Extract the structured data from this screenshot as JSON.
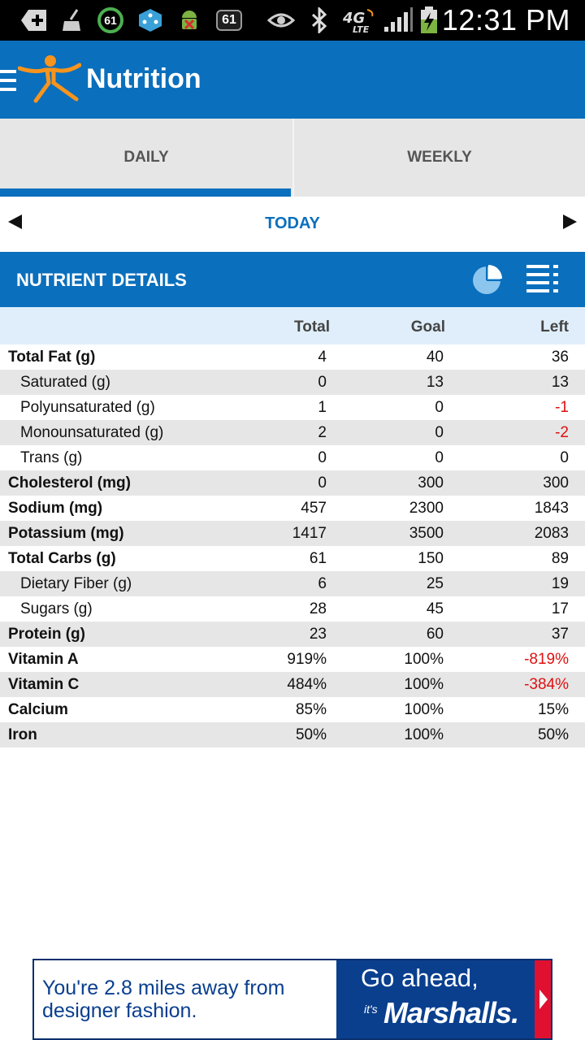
{
  "status_bar": {
    "badge1": "61",
    "badge2": "61",
    "network": "4G LTE",
    "time": "12:31 PM"
  },
  "app_bar": {
    "title": "Nutrition"
  },
  "tabs": [
    {
      "label": "DAILY",
      "active": true
    },
    {
      "label": "WEEKLY",
      "active": false
    }
  ],
  "date_nav": {
    "label": "TODAY"
  },
  "section": {
    "title": "NUTRIENT DETAILS"
  },
  "table": {
    "headers": [
      "Total",
      "Goal",
      "Left"
    ],
    "rows": [
      {
        "name": "Total Fat (g)",
        "total": "4",
        "goal": "40",
        "left": "36"
      },
      {
        "name": "Saturated (g)",
        "total": "0",
        "goal": "13",
        "left": "13"
      },
      {
        "name": "Polyunsaturated (g)",
        "total": "1",
        "goal": "0",
        "left": "-1"
      },
      {
        "name": "Monounsaturated (g)",
        "total": "2",
        "goal": "0",
        "left": "-2"
      },
      {
        "name": "Trans (g)",
        "total": "0",
        "goal": "0",
        "left": "0"
      },
      {
        "name": "Cholesterol (mg)",
        "total": "0",
        "goal": "300",
        "left": "300"
      },
      {
        "name": "Sodium (mg)",
        "total": "457",
        "goal": "2300",
        "left": "1843"
      },
      {
        "name": "Potassium (mg)",
        "total": "1417",
        "goal": "3500",
        "left": "2083"
      },
      {
        "name": "Total Carbs (g)",
        "total": "61",
        "goal": "150",
        "left": "89"
      },
      {
        "name": "Dietary Fiber (g)",
        "total": "6",
        "goal": "25",
        "left": "19"
      },
      {
        "name": "Sugars (g)",
        "total": "28",
        "goal": "45",
        "left": "17"
      },
      {
        "name": "Protein (g)",
        "total": "23",
        "goal": "60",
        "left": "37"
      },
      {
        "name": "Vitamin A",
        "total": "919%",
        "goal": "100%",
        "left": "-819%"
      },
      {
        "name": "Vitamin C",
        "total": "484%",
        "goal": "100%",
        "left": "-384%"
      },
      {
        "name": "Calcium",
        "total": "85%",
        "goal": "100%",
        "left": "15%"
      },
      {
        "name": "Iron",
        "total": "50%",
        "goal": "100%",
        "left": "50%"
      }
    ]
  },
  "ad": {
    "text": "You're 2.8 miles away from designer fashion.",
    "headline": "Go ahead,",
    "its": "it's",
    "brand": "Marshalls."
  },
  "colors": {
    "primary": "#0a6fbd",
    "negative": "#e01010",
    "accent_orange": "#f7941d"
  }
}
